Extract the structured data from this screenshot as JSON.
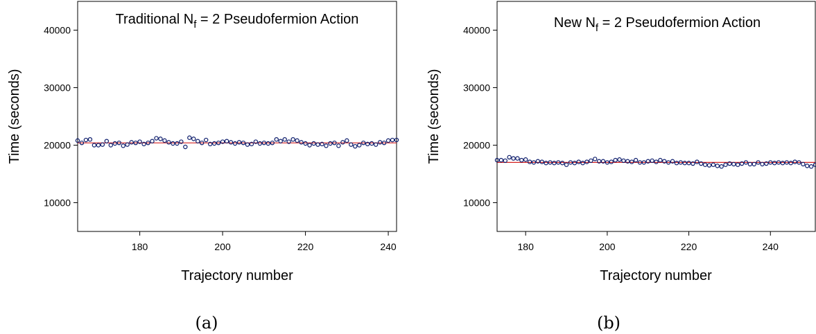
{
  "chart_data": [
    {
      "type": "scatter",
      "title": {
        "prefix": "Traditional N",
        "sub": "f",
        "suffix": " = 2 Pseudofermion Action"
      },
      "xlabel": "Trajectory number",
      "ylabel": "Time (seconds)",
      "caption": "(a)",
      "xlim": [
        165,
        242
      ],
      "ylim": [
        5000,
        45000
      ],
      "xticks": [
        180,
        200,
        220,
        240
      ],
      "yticks": [
        10000,
        20000,
        30000,
        40000
      ],
      "marker_color": "#0a1a6a",
      "fit_line_color": "#d42020",
      "fit_line_y": 20400,
      "series": [
        {
          "x": [
            165,
            166,
            167,
            168,
            169,
            170,
            171,
            172,
            173,
            174,
            175,
            176,
            177,
            178,
            179,
            180,
            181,
            182,
            183,
            184,
            185,
            186,
            187,
            188,
            189,
            190,
            191,
            192,
            193,
            194,
            195,
            196,
            197,
            198,
            199,
            200,
            201,
            202,
            203,
            204,
            205,
            206,
            207,
            208,
            209,
            210,
            211,
            212,
            213,
            214,
            215,
            216,
            217,
            218,
            219,
            220,
            221,
            222,
            223,
            224,
            225,
            226,
            227,
            228,
            229,
            230,
            231,
            232,
            233,
            234,
            235,
            236,
            237,
            238,
            239,
            240,
            241,
            242
          ],
          "y": [
            20800,
            20400,
            20900,
            21000,
            20000,
            20000,
            20100,
            20700,
            20000,
            20300,
            20400,
            19900,
            20100,
            20500,
            20400,
            20600,
            20200,
            20400,
            20700,
            21200,
            21100,
            20800,
            20500,
            20300,
            20300,
            20600,
            19700,
            21300,
            21100,
            20700,
            20400,
            20900,
            20200,
            20300,
            20400,
            20600,
            20700,
            20500,
            20300,
            20500,
            20400,
            20100,
            20200,
            20600,
            20300,
            20400,
            20300,
            20400,
            21000,
            20700,
            21000,
            20600,
            21000,
            20800,
            20500,
            20300,
            20000,
            20300,
            20100,
            20200,
            19900,
            20300,
            20400,
            19900,
            20500,
            20800,
            20100,
            19800,
            20000,
            20400,
            20200,
            20300,
            20100,
            20500,
            20400,
            20800,
            20900,
            20900
          ]
        }
      ]
    },
    {
      "type": "scatter",
      "title": {
        "prefix": "New N",
        "sub": "f",
        "suffix": " = 2 Pseudofermion Action"
      },
      "xlabel": "Trajectory number",
      "ylabel": "Time (seconds)",
      "caption": "(b)",
      "xlim": [
        173,
        251
      ],
      "ylim": [
        5000,
        45000
      ],
      "xticks": [
        180,
        200,
        220,
        240
      ],
      "yticks": [
        10000,
        20000,
        30000,
        40000
      ],
      "marker_color": "#0a1a6a",
      "fit_line_color": "#d42020",
      "fit_line_y": 17000,
      "series": [
        {
          "x": [
            173,
            174,
            175,
            176,
            177,
            178,
            179,
            180,
            181,
            182,
            183,
            184,
            185,
            186,
            187,
            188,
            189,
            190,
            191,
            192,
            193,
            194,
            195,
            196,
            197,
            198,
            199,
            200,
            201,
            202,
            203,
            204,
            205,
            206,
            207,
            208,
            209,
            210,
            211,
            212,
            213,
            214,
            215,
            216,
            217,
            218,
            219,
            220,
            221,
            222,
            223,
            224,
            225,
            226,
            227,
            228,
            229,
            230,
            231,
            232,
            233,
            234,
            235,
            236,
            237,
            238,
            239,
            240,
            241,
            242,
            243,
            244,
            245,
            246,
            247,
            248,
            249,
            250,
            251
          ],
          "y": [
            17400,
            17400,
            17300,
            17900,
            17700,
            17700,
            17400,
            17500,
            17100,
            17000,
            17200,
            17100,
            16900,
            17000,
            16900,
            17000,
            16900,
            16600,
            17000,
            16900,
            17100,
            16900,
            17100,
            17300,
            17600,
            17200,
            17200,
            17000,
            17100,
            17400,
            17500,
            17300,
            17200,
            17100,
            17400,
            17000,
            17000,
            17200,
            17300,
            17100,
            17400,
            17200,
            17000,
            17200,
            16900,
            17000,
            16900,
            16900,
            16800,
            17100,
            16800,
            16600,
            16500,
            16600,
            16400,
            16300,
            16600,
            16800,
            16700,
            16600,
            16800,
            17000,
            16700,
            16700,
            17000,
            16700,
            16800,
            17000,
            16900,
            17000,
            16900,
            17000,
            16900,
            17100,
            17000,
            16700,
            16400,
            16300,
            16600
          ]
        }
      ]
    }
  ]
}
